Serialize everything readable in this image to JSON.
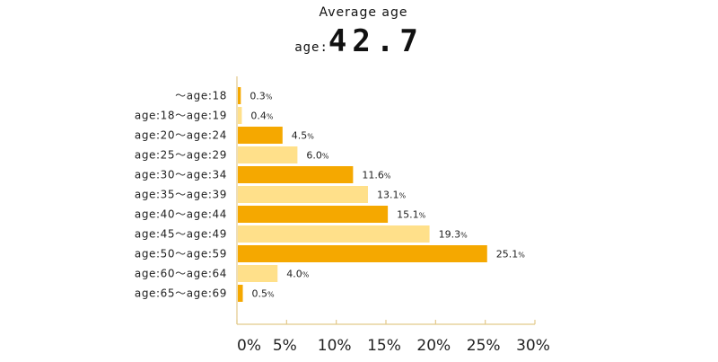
{
  "header": {
    "title": "Average age",
    "avg_unit": "age:",
    "avg_value": "42.7"
  },
  "colors": {
    "bar_dark": "#F5A800",
    "bar_light": "#FFE08A",
    "axis": "#E2C98A"
  },
  "chart_data": {
    "type": "bar",
    "orientation": "horizontal",
    "categories": [
      "～age:18",
      "age:18～age:19",
      "age:20～age:24",
      "age:25～age:29",
      "age:30～age:34",
      "age:35～age:39",
      "age:40～age:44",
      "age:45～age:49",
      "age:50～age:59",
      "age:60～age:64",
      "age:65～age:69"
    ],
    "values": [
      0.3,
      0.4,
      4.5,
      6.0,
      11.6,
      13.1,
      15.1,
      19.3,
      25.1,
      4.0,
      0.5
    ],
    "value_labels": [
      "0.3",
      "0.4",
      "4.5",
      "6.0",
      "11.6",
      "13.1",
      "15.1",
      "19.3",
      "25.1",
      "4.0",
      "0.5"
    ],
    "value_suffix": "%",
    "xlim": [
      0,
      30
    ],
    "xticks": [
      0,
      5,
      10,
      15,
      20,
      25,
      30
    ],
    "xtick_labels": [
      "0%",
      "5%",
      "10%",
      "15%",
      "20%",
      "25%",
      "30%"
    ],
    "grid": false,
    "legend": "none"
  }
}
